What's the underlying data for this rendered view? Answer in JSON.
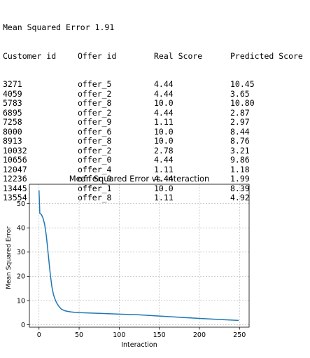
{
  "output": {
    "mse_line": "Mean Squared Error 1.91",
    "headers": [
      "Customer id",
      "Offer id",
      "Real Score",
      "Predicted Score"
    ],
    "rows": [
      [
        "3271",
        "offer_5",
        "4.44",
        "10.45"
      ],
      [
        "4059",
        "offer_2",
        "4.44",
        "3.65"
      ],
      [
        "5783",
        "offer_8",
        "10.0",
        "10.80"
      ],
      [
        "6895",
        "offer_2",
        "4.44",
        "2.87"
      ],
      [
        "7258",
        "offer_9",
        "1.11",
        "2.97"
      ],
      [
        "8000",
        "offer_6",
        "10.0",
        "8.44"
      ],
      [
        "8913",
        "offer_8",
        "10.0",
        "8.76"
      ],
      [
        "10032",
        "offer_2",
        "2.78",
        "3.21"
      ],
      [
        "10656",
        "offer_0",
        "4.44",
        "9.86"
      ],
      [
        "12047",
        "offer_4",
        "1.11",
        "1.18"
      ],
      [
        "12236",
        "offer_0",
        "4.44",
        "1.99"
      ],
      [
        "13445",
        "offer_1",
        "10.0",
        "8.39"
      ],
      [
        "13554",
        "offer_8",
        "1.11",
        "4.92"
      ]
    ]
  },
  "chart_data": {
    "type": "line",
    "title": "Mean Squared Error vs. Interaction",
    "xlabel": "Interaction",
    "ylabel": "Mean Squared Error",
    "xlim": [
      -12,
      262
    ],
    "ylim": [
      -1,
      58
    ],
    "xticks": [
      0,
      50,
      100,
      150,
      200,
      250
    ],
    "yticks": [
      0,
      10,
      20,
      30,
      40,
      50
    ],
    "grid": true,
    "series": [
      {
        "color": "#1f77b4",
        "x": [
          0,
          1,
          3,
          5,
          7,
          9,
          10,
          12,
          14,
          16,
          18,
          20,
          22,
          25,
          28,
          32,
          36,
          40,
          45,
          50,
          60,
          75,
          100,
          125,
          150,
          175,
          200,
          225,
          249
        ],
        "y": [
          55.5,
          46.0,
          45.5,
          44.0,
          41.5,
          37.0,
          34.0,
          27.5,
          21.0,
          15.8,
          12.5,
          10.5,
          9.0,
          7.5,
          6.4,
          5.8,
          5.5,
          5.3,
          5.1,
          5.0,
          4.9,
          4.7,
          4.4,
          4.1,
          3.6,
          3.1,
          2.6,
          2.2,
          1.8
        ]
      }
    ]
  }
}
